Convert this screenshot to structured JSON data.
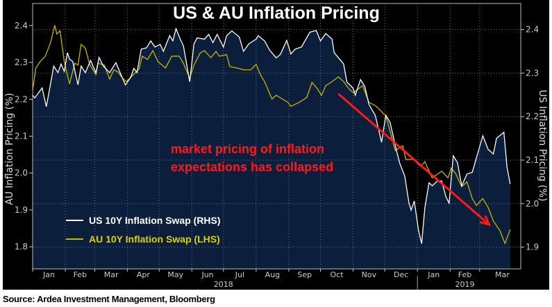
{
  "source": "Source: Ardea Investment Management, Bloomberg",
  "chart_data": {
    "type": "line",
    "title": "US & AU Inflation Pricing",
    "x_unit": "days since 2018-01-01",
    "xlim": [
      0,
      463
    ],
    "month_ticks": [
      {
        "label": "Jan",
        "start": 0
      },
      {
        "label": "Feb",
        "start": 31
      },
      {
        "label": "Mar",
        "start": 59
      },
      {
        "label": "Apr",
        "start": 90
      },
      {
        "label": "May",
        "start": 120
      },
      {
        "label": "Jun",
        "start": 151
      },
      {
        "label": "Jul",
        "start": 181
      },
      {
        "label": "Aug",
        "start": 212
      },
      {
        "label": "Sep",
        "start": 243
      },
      {
        "label": "Oct",
        "start": 273
      },
      {
        "label": "Nov",
        "start": 304
      },
      {
        "label": "Dec",
        "start": 334
      },
      {
        "label": "Jan",
        "start": 365
      },
      {
        "label": "Feb",
        "start": 396
      },
      {
        "label": "Mar",
        "start": 424
      }
    ],
    "years": [
      {
        "label": "2018",
        "center": 181
      },
      {
        "label": "2019",
        "center": 410,
        "start": 365
      }
    ],
    "left_axis": {
      "label": "AU Inflation Pricing (%)",
      "ylim": [
        1.74,
        2.46
      ],
      "ticks": [
        "1.8",
        "1.9",
        "2.0",
        "2.1",
        "2.2",
        "2.3",
        "2.4"
      ]
    },
    "right_axis": {
      "label": "US Inflation Pricing (%)",
      "ylim": [
        1.85,
        2.46
      ],
      "ticks": [
        "1.9",
        "2.0",
        "2.1",
        "2.2",
        "2.3",
        "2.4"
      ]
    },
    "annotation": {
      "lines": [
        "market pricing of inflation",
        "expectations has collapsed"
      ],
      "color": "#ff1a1a",
      "arrow_from": [
        290,
        2.215
      ],
      "arrow_to": [
        433,
        1.86
      ]
    },
    "series": [
      {
        "name": "US 10Y Inflation Swap (RHS)",
        "axis": "right",
        "color": "#ffffff",
        "fill": "#0b1f3c",
        "x": [
          0,
          2,
          9,
          13,
          15,
          20,
          24,
          27,
          30,
          33,
          35,
          38,
          43,
          46,
          50,
          55,
          60,
          63,
          67,
          73,
          79,
          83,
          88,
          93,
          96,
          99,
          103,
          108,
          112,
          116,
          121,
          124,
          130,
          133,
          136,
          140,
          143,
          149,
          153,
          156,
          163,
          167,
          171,
          175,
          181,
          184,
          189,
          196,
          200,
          205,
          212,
          214,
          220,
          225,
          231,
          235,
          241,
          245,
          249,
          255,
          263,
          269,
          273,
          278,
          284,
          286,
          295,
          298,
          304,
          306,
          311,
          315,
          319,
          325,
          331,
          335,
          339,
          344,
          348,
          353,
          357,
          359,
          362,
          366,
          369,
          372,
          376,
          379,
          384,
          388,
          392,
          395,
          399,
          403,
          407,
          412,
          417,
          422,
          427,
          432,
          437,
          440,
          447,
          450,
          453
        ],
        "y": [
          2.249,
          2.243,
          2.266,
          2.223,
          2.249,
          2.316,
          2.301,
          2.321,
          2.304,
          2.347,
          2.332,
          2.327,
          2.273,
          2.316,
          2.301,
          2.329,
          2.301,
          2.336,
          2.316,
          2.301,
          2.324,
          2.301,
          2.273,
          2.29,
          2.311,
          2.301,
          2.355,
          2.358,
          2.374,
          2.36,
          2.366,
          2.35,
          2.386,
          2.374,
          2.402,
          2.378,
          2.363,
          2.28,
          2.367,
          2.381,
          2.378,
          2.389,
          2.37,
          2.389,
          2.36,
          2.386,
          2.397,
          2.383,
          2.35,
          2.367,
          2.378,
          2.386,
          2.374,
          2.352,
          2.335,
          2.343,
          2.375,
          2.344,
          2.355,
          2.36,
          2.394,
          2.398,
          2.374,
          2.391,
          2.378,
          2.347,
          2.321,
          2.28,
          2.265,
          2.249,
          2.285,
          2.27,
          2.228,
          2.203,
          2.141,
          2.203,
          2.187,
          2.134,
          2.094,
          2.063,
          2.001,
          1.985,
          2.006,
          1.939,
          1.908,
          1.99,
          2.048,
          2.041,
          2.052,
          2.052,
          2.016,
          2.001,
          2.11,
          2.094,
          2.041,
          2.068,
          2.072,
          2.114,
          2.156,
          2.125,
          2.114,
          2.15,
          2.164,
          2.083,
          2.045
        ]
      },
      {
        "name": "AU 10Y Inflation Swap (LHS)",
        "axis": "left",
        "color": "#c8b400",
        "x": [
          0,
          3,
          7,
          12,
          17,
          21,
          23,
          26,
          30,
          35,
          40,
          43,
          46,
          50,
          54,
          60,
          62,
          68,
          73,
          77,
          81,
          86,
          89,
          95,
          101,
          104,
          109,
          114,
          119,
          126,
          132,
          139,
          143,
          149,
          153,
          159,
          163,
          169,
          174,
          177,
          184,
          187,
          194,
          200,
          207,
          212,
          216,
          220,
          227,
          231,
          242,
          245,
          253,
          260,
          265,
          270,
          274,
          278,
          284,
          290,
          295,
          300,
          304,
          313,
          319,
          326,
          335,
          344,
          351,
          354,
          361,
          368,
          372,
          379,
          388,
          394,
          397,
          401,
          407,
          412,
          417,
          421,
          427,
          432,
          437,
          443,
          448,
          453
        ],
        "y": [
          2.224,
          2.285,
          2.302,
          2.317,
          2.354,
          2.401,
          2.377,
          2.386,
          2.302,
          2.242,
          2.298,
          2.293,
          2.349,
          2.339,
          2.295,
          2.267,
          2.298,
          2.293,
          2.255,
          2.28,
          2.274,
          2.255,
          2.248,
          2.265,
          2.283,
          2.317,
          2.308,
          2.332,
          2.302,
          2.285,
          2.317,
          2.317,
          2.298,
          2.257,
          2.293,
          2.326,
          2.332,
          2.313,
          2.33,
          2.317,
          2.321,
          2.289,
          2.285,
          2.28,
          2.28,
          2.295,
          2.267,
          2.248,
          2.201,
          2.211,
          2.192,
          2.181,
          2.192,
          2.205,
          2.246,
          2.229,
          2.211,
          2.237,
          2.248,
          2.261,
          2.248,
          2.229,
          2.218,
          2.237,
          2.192,
          2.181,
          2.155,
          2.061,
          2.074,
          2.037,
          2.037,
          2.018,
          2.031,
          1.987,
          2.005,
          1.987,
          2.013,
          2.0,
          1.963,
          1.976,
          1.931,
          1.912,
          1.931,
          1.907,
          1.87,
          1.845,
          1.809,
          1.847
        ]
      }
    ]
  }
}
